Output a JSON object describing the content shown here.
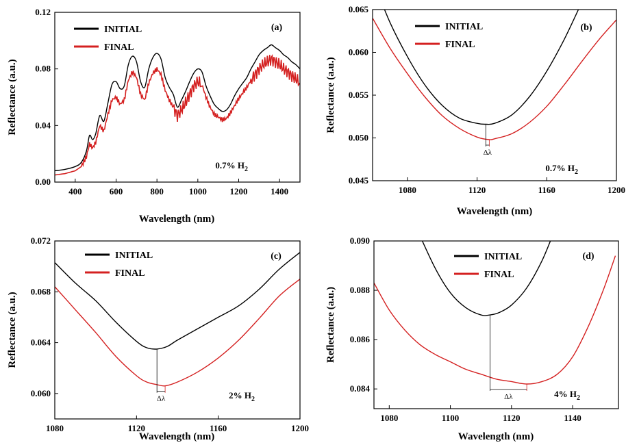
{
  "chart_data": [
    {
      "type": "line",
      "panel_label": "(a)",
      "condition": "0.7% H",
      "condition_sub": "2",
      "xlabel": "Wavelength (nm)",
      "ylabel": "Reflectance (a.u.)",
      "xlim": [
        300,
        1500
      ],
      "ylim": [
        0,
        0.12
      ],
      "xticks": [
        400,
        600,
        800,
        1000,
        1200,
        1400
      ],
      "xtick_labels": [
        "400",
        "600",
        "800",
        "1000",
        "1200",
        "1400"
      ],
      "yticks": [
        0,
        0.04,
        0.08,
        0.12
      ],
      "ytick_labels": [
        "0.00",
        "0.04",
        "0.08",
        "0.12"
      ],
      "legend": [
        "INITIAL",
        "FINAL"
      ],
      "legend_position": "top-left",
      "colors": [
        "#000000",
        "#d42020"
      ],
      "series": [
        {
          "name": "INITIAL",
          "x": [
            300,
            350,
            400,
            430,
            455,
            470,
            485,
            500,
            520,
            540,
            560,
            580,
            600,
            620,
            640,
            660,
            680,
            700,
            720,
            740,
            760,
            780,
            800,
            820,
            840,
            860,
            880,
            900,
            920,
            940,
            960,
            980,
            1000,
            1020,
            1040,
            1060,
            1080,
            1100,
            1120,
            1140,
            1160,
            1180,
            1200,
            1220,
            1240,
            1260,
            1280,
            1300,
            1320,
            1340,
            1360,
            1380,
            1400,
            1420,
            1440,
            1460,
            1480,
            1500
          ],
          "y": [
            0.008,
            0.009,
            0.011,
            0.014,
            0.022,
            0.033,
            0.03,
            0.034,
            0.047,
            0.043,
            0.056,
            0.069,
            0.071,
            0.066,
            0.068,
            0.083,
            0.089,
            0.085,
            0.071,
            0.067,
            0.08,
            0.088,
            0.091,
            0.087,
            0.074,
            0.067,
            0.062,
            0.053,
            0.058,
            0.064,
            0.071,
            0.077,
            0.08,
            0.078,
            0.068,
            0.061,
            0.055,
            0.052,
            0.05,
            0.051,
            0.055,
            0.061,
            0.066,
            0.07,
            0.074,
            0.08,
            0.085,
            0.09,
            0.093,
            0.095,
            0.097,
            0.095,
            0.093,
            0.09,
            0.088,
            0.085,
            0.083,
            0.08
          ]
        },
        {
          "name": "FINAL",
          "x": [
            300,
            350,
            400,
            430,
            455,
            470,
            485,
            500,
            520,
            540,
            560,
            580,
            600,
            620,
            640,
            660,
            680,
            700,
            720,
            740,
            760,
            780,
            800,
            820,
            840,
            860,
            880,
            900,
            920,
            940,
            960,
            980,
            1000,
            1020,
            1040,
            1060,
            1080,
            1100,
            1120,
            1140,
            1160,
            1180,
            1200,
            1220,
            1240,
            1260,
            1280,
            1300,
            1320,
            1340,
            1360,
            1380,
            1400,
            1420,
            1440,
            1460,
            1480,
            1500
          ],
          "y": [
            0.005,
            0.006,
            0.008,
            0.011,
            0.018,
            0.027,
            0.024,
            0.028,
            0.04,
            0.036,
            0.048,
            0.058,
            0.06,
            0.055,
            0.058,
            0.072,
            0.078,
            0.074,
            0.062,
            0.058,
            0.07,
            0.077,
            0.08,
            0.076,
            0.065,
            0.058,
            0.053,
            0.047,
            0.051,
            0.056,
            0.062,
            0.068,
            0.071,
            0.069,
            0.06,
            0.053,
            0.048,
            0.046,
            0.044,
            0.045,
            0.049,
            0.054,
            0.059,
            0.063,
            0.067,
            0.072,
            0.076,
            0.08,
            0.083,
            0.085,
            0.087,
            0.085,
            0.083,
            0.08,
            0.078,
            0.075,
            0.073,
            0.07
          ]
        }
      ],
      "noise": [
        0,
        0.0045
      ],
      "delta_marker": null
    },
    {
      "type": "line",
      "panel_label": "(b)",
      "condition": "0.7% H",
      "condition_sub": "2",
      "xlabel": "Wavelength (nm)",
      "ylabel": "Reflectance (a.u.)",
      "xlim": [
        1060,
        1200
      ],
      "ylim": [
        0.045,
        0.065
      ],
      "xticks": [
        1080,
        1120,
        1160,
        1200
      ],
      "xtick_labels": [
        "1080",
        "1120",
        "1160",
        "1200"
      ],
      "yticks": [
        0.045,
        0.05,
        0.055,
        0.06,
        0.065
      ],
      "ytick_labels": [
        "0.045",
        "0.050",
        "0.055",
        "0.060",
        "0.065"
      ],
      "legend": [
        "INITIAL",
        "FINAL"
      ],
      "legend_position": "top-center",
      "colors": [
        "#000000",
        "#d42020"
      ],
      "series": [
        {
          "name": "INITIAL",
          "x": [
            1060,
            1070,
            1080,
            1090,
            1100,
            1110,
            1120,
            1125,
            1130,
            1140,
            1150,
            1160,
            1170,
            1180
          ],
          "y": [
            0.0685,
            0.0635,
            0.0595,
            0.0562,
            0.0538,
            0.0523,
            0.0517,
            0.0516,
            0.0517,
            0.0527,
            0.0548,
            0.0578,
            0.0615,
            0.0658
          ]
        },
        {
          "name": "FINAL",
          "x": [
            1060,
            1070,
            1080,
            1090,
            1100,
            1110,
            1120,
            1127,
            1130,
            1140,
            1150,
            1160,
            1170,
            1180,
            1190,
            1200
          ],
          "y": [
            0.064,
            0.0605,
            0.0575,
            0.0548,
            0.0526,
            0.0511,
            0.0501,
            0.0498,
            0.0499,
            0.0505,
            0.0518,
            0.0537,
            0.0562,
            0.0589,
            0.0615,
            0.0638
          ]
        }
      ],
      "noise": [
        0,
        0
      ],
      "delta_marker": {
        "x1": 1125,
        "y1": 0.0516,
        "x2": 1127,
        "y2": 0.0498,
        "label": "Δλ"
      }
    },
    {
      "type": "line",
      "panel_label": "(c)",
      "condition": "2% H",
      "condition_sub": "2",
      "xlabel": "Wavelength (nm)",
      "ylabel": "Reflectance (a.u.)",
      "xlim": [
        1080,
        1200
      ],
      "ylim": [
        0.058,
        0.072
      ],
      "xticks": [
        1080,
        1120,
        1160,
        1200
      ],
      "xtick_labels": [
        "1080",
        "1120",
        "1160",
        "1200"
      ],
      "yticks": [
        0.06,
        0.064,
        0.068,
        0.072
      ],
      "ytick_labels": [
        "0.060",
        "0.064",
        "0.068",
        "0.072"
      ],
      "legend": [
        "INITIAL",
        "FINAL"
      ],
      "legend_position": "top-center",
      "colors": [
        "#000000",
        "#d42020"
      ],
      "series": [
        {
          "name": "INITIAL",
          "x": [
            1080,
            1090,
            1100,
            1110,
            1120,
            1125,
            1130,
            1135,
            1140,
            1150,
            1160,
            1170,
            1180,
            1190,
            1200
          ],
          "y": [
            0.0703,
            0.0687,
            0.0673,
            0.0656,
            0.0641,
            0.0636,
            0.0635,
            0.0637,
            0.0642,
            0.0651,
            0.066,
            0.0669,
            0.0682,
            0.0698,
            0.0711
          ]
        },
        {
          "name": "FINAL",
          "x": [
            1080,
            1090,
            1100,
            1110,
            1120,
            1125,
            1130,
            1134,
            1140,
            1150,
            1160,
            1170,
            1180,
            1190,
            1200
          ],
          "y": [
            0.0684,
            0.0666,
            0.0648,
            0.0629,
            0.0614,
            0.0609,
            0.0607,
            0.0606,
            0.0609,
            0.0617,
            0.0628,
            0.0642,
            0.0659,
            0.0677,
            0.069
          ]
        }
      ],
      "noise": [
        0,
        0
      ],
      "delta_marker": {
        "x1": 1130,
        "y1": 0.0635,
        "x2": 1134,
        "y2": 0.0606,
        "label": "Δλ"
      }
    },
    {
      "type": "line",
      "panel_label": "(d)",
      "condition": "4% H",
      "condition_sub": "2",
      "xlabel": "Wavelength (nm)",
      "ylabel": "Reflectance (a.u.)",
      "xlim": [
        1075,
        1155
      ],
      "ylim": [
        0.0832,
        0.09
      ],
      "xticks": [
        1080,
        1100,
        1120,
        1140
      ],
      "xtick_labels": [
        "1080",
        "1100",
        "1120",
        "1140"
      ],
      "yticks": [
        0.084,
        0.086,
        0.088,
        0.09
      ],
      "ytick_labels": [
        "0.084",
        "0.086",
        "0.088",
        "0.090"
      ],
      "legend": [
        "INITIAL",
        "FINAL"
      ],
      "legend_position": "top-center",
      "colors": [
        "#000000",
        "#d42020"
      ],
      "series": [
        {
          "name": "INITIAL",
          "x": [
            1089,
            1095,
            1100,
            1105,
            1110,
            1113,
            1116,
            1120,
            1125,
            1130,
            1134
          ],
          "y": [
            0.0905,
            0.0889,
            0.0879,
            0.0873,
            0.087,
            0.087,
            0.0871,
            0.0874,
            0.0881,
            0.0892,
            0.0904
          ]
        },
        {
          "name": "FINAL",
          "x": [
            1075,
            1080,
            1085,
            1090,
            1095,
            1100,
            1105,
            1110,
            1115,
            1120,
            1125,
            1130,
            1135,
            1140,
            1145,
            1150,
            1154
          ],
          "y": [
            0.0883,
            0.0872,
            0.0864,
            0.0858,
            0.0854,
            0.0851,
            0.0848,
            0.0846,
            0.0844,
            0.0843,
            0.0842,
            0.0843,
            0.0846,
            0.0853,
            0.0865,
            0.088,
            0.0894
          ]
        }
      ],
      "noise": [
        0,
        0
      ],
      "delta_marker": {
        "x1": 1113,
        "y1": 0.087,
        "x2": 1125,
        "y2": 0.0842,
        "label": "Δλ"
      }
    }
  ]
}
